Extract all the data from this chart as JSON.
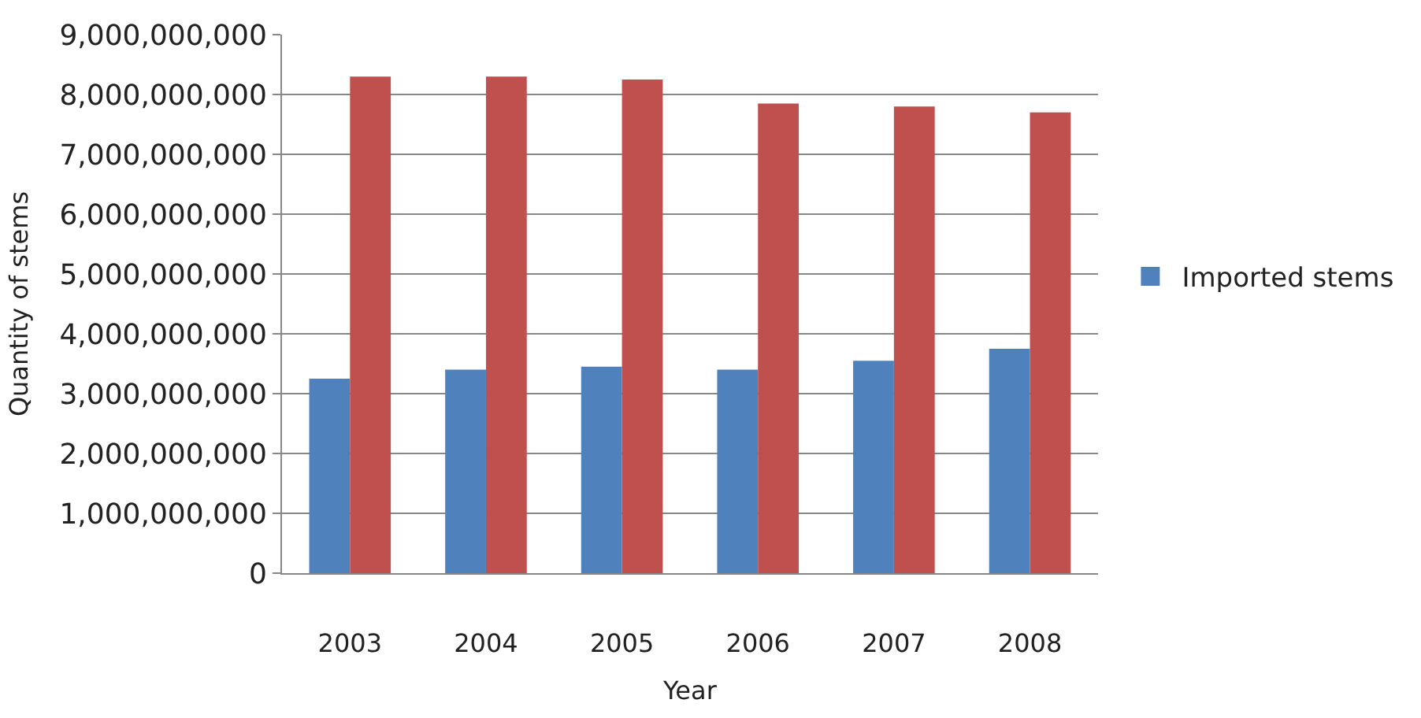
{
  "chart_data": {
    "type": "bar",
    "xlabel": "Year",
    "ylabel": "Quantity of stems",
    "categories": [
      "2003",
      "2004",
      "2005",
      "2006",
      "2007",
      "2008"
    ],
    "series": [
      {
        "name": "Imported stems",
        "color": "#4f81bd",
        "values": [
          3250000000,
          3400000000,
          3450000000,
          3400000000,
          3550000000,
          3750000000
        ]
      },
      {
        "color": "#c0504d",
        "values": [
          8300000000,
          8300000000,
          8250000000,
          7850000000,
          7800000000,
          7700000000
        ]
      }
    ],
    "ylim": [
      0,
      9000000000
    ],
    "yticks": [
      0,
      {
        "value": 1000000000,
        "label": "1,000,000,000"
      },
      {
        "value": 2000000000,
        "label": "2,000,000,000"
      },
      {
        "value": 3000000000,
        "label": "3,000,000,000"
      },
      {
        "value": 4000000000,
        "label": "4,000,000,000"
      },
      {
        "value": 5000000000,
        "label": "5,000,000,000"
      },
      {
        "value": 6000000000,
        "label": "6,000,000,000"
      },
      {
        "value": 7000000000,
        "label": "7,000,000,000"
      },
      {
        "value": 8000000000,
        "label": "8,000,000,000"
      },
      {
        "value": 9000000000,
        "label": "9,000,000,000"
      }
    ],
    "grid": "y",
    "legend": "right"
  }
}
